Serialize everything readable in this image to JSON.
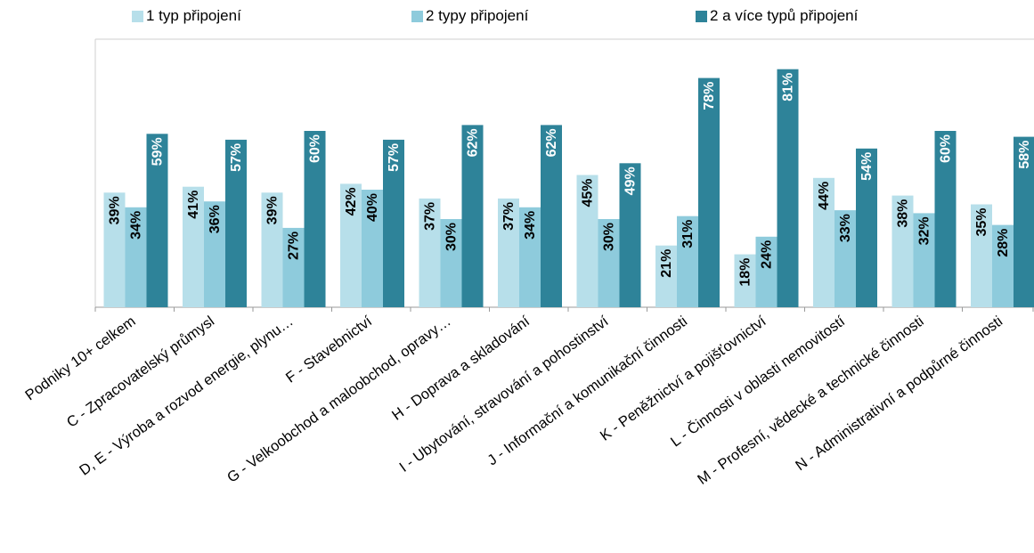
{
  "chart_data": {
    "type": "bar",
    "categories": [
      "Podniky 10+ celkem",
      "C - Zpracovatelský průmysl",
      "D, E - Výroba a rozvod energie, plynu…",
      "F - Stavebnictví",
      "G - Velkoobchod a maloobchod, opravy…",
      "H - Doprava a skladování",
      "I - Ubytování, stravování a pohostinství",
      "J - Informační a komunikační činnosti",
      "K - Peněžnictví a pojišťovnictví",
      "L - Činnosti v oblasti nemovitostí",
      "M - Profesní, vědecké a technické činnosti",
      "N - Administrativní a podpůrné činnosti"
    ],
    "series": [
      {
        "name": "1 typ připojení",
        "color": "#b7dfea",
        "label_color": "#000000",
        "values": [
          39,
          41,
          39,
          42,
          37,
          37,
          45,
          21,
          18,
          44,
          38,
          35
        ],
        "labels": [
          "39%",
          "41%",
          "39%",
          "42%",
          "37%",
          "37%",
          "45%",
          "21%",
          "18%",
          "44%",
          "38%",
          "35%"
        ]
      },
      {
        "name": "2 typy připojení",
        "color": "#8ecbdc",
        "label_color": "#000000",
        "values": [
          34,
          36,
          27,
          40,
          30,
          34,
          30,
          31,
          24,
          33,
          32,
          28
        ],
        "labels": [
          "34%",
          "36%",
          "27%",
          "40%",
          "30%",
          "34%",
          "30%",
          "31%",
          "24%",
          "33%",
          "32%",
          "28%"
        ]
      },
      {
        "name": "2 a více typů připojení",
        "color": "#2e8399",
        "label_color": "#ffffff",
        "values": [
          59,
          57,
          60,
          57,
          62,
          62,
          49,
          78,
          81,
          54,
          60,
          58
        ],
        "labels": [
          "59%",
          "57%",
          "60%",
          "57%",
          "62%",
          "62%",
          "49%",
          "78%",
          "81%",
          "54%",
          "60%",
          "58%"
        ]
      }
    ],
    "ylim": [
      0,
      90
    ],
    "grid": false,
    "legend_position": "top"
  }
}
